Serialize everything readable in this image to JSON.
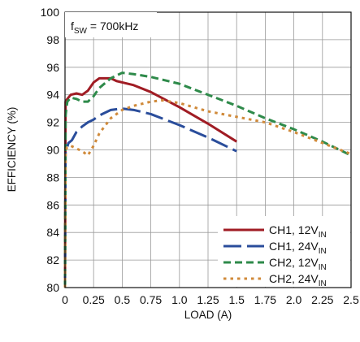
{
  "chart_data": {
    "type": "line",
    "annotation": {
      "main": "f",
      "sub": "SW",
      "rest": " = 700kHz"
    },
    "xlabel": "LOAD (A)",
    "ylabel": "EFFICIENCY (%)",
    "xlim": [
      0,
      2.5
    ],
    "ylim": [
      80,
      100
    ],
    "x_ticks": [
      0,
      0.25,
      0.5,
      0.75,
      1.0,
      1.25,
      1.5,
      1.75,
      2.0,
      2.25,
      2.5
    ],
    "x_tick_labels": [
      "0",
      "0.25",
      "0.5",
      "0.75",
      "1.0",
      "1.25",
      "1.5",
      "1.75",
      "2.0",
      "2.25",
      "2.5"
    ],
    "y_ticks": [
      80,
      82,
      84,
      86,
      88,
      90,
      92,
      94,
      96,
      98,
      100
    ],
    "y_tick_labels": [
      "80",
      "82",
      "84",
      "86",
      "88",
      "90",
      "92",
      "94",
      "96",
      "98",
      "100"
    ],
    "grid": true,
    "legend_position": "bottom-right",
    "series": [
      {
        "name": "CH1, 12V",
        "name_sub": "IN",
        "color": "#a01c24",
        "dash": "solid",
        "points": [
          [
            0.0,
            80.0
          ],
          [
            0.005,
            93.5
          ],
          [
            0.02,
            93.7
          ],
          [
            0.05,
            94.0
          ],
          [
            0.1,
            94.1
          ],
          [
            0.15,
            94.0
          ],
          [
            0.2,
            94.3
          ],
          [
            0.25,
            94.9
          ],
          [
            0.3,
            95.2
          ],
          [
            0.4,
            95.2
          ],
          [
            0.45,
            95.0
          ],
          [
            0.5,
            94.9
          ],
          [
            0.6,
            94.7
          ],
          [
            0.75,
            94.2
          ],
          [
            1.0,
            93.1
          ],
          [
            1.25,
            91.9
          ],
          [
            1.5,
            90.6
          ]
        ]
      },
      {
        "name": "CH1, 24V",
        "name_sub": "IN",
        "color": "#2a4d9b",
        "dash": "long-dash",
        "points": [
          [
            0.0,
            80.0
          ],
          [
            0.005,
            89.8
          ],
          [
            0.03,
            90.5
          ],
          [
            0.06,
            90.7
          ],
          [
            0.1,
            91.3
          ],
          [
            0.15,
            91.7
          ],
          [
            0.2,
            92.0
          ],
          [
            0.25,
            92.2
          ],
          [
            0.3,
            92.5
          ],
          [
            0.4,
            92.9
          ],
          [
            0.5,
            93.0
          ],
          [
            0.6,
            92.9
          ],
          [
            0.75,
            92.6
          ],
          [
            1.0,
            91.8
          ],
          [
            1.25,
            90.9
          ],
          [
            1.5,
            89.9
          ]
        ]
      },
      {
        "name": "CH2, 12V",
        "name_sub": "IN",
        "color": "#2e8a4a",
        "dash": "dash",
        "points": [
          [
            0.0,
            80.0
          ],
          [
            0.005,
            92.5
          ],
          [
            0.02,
            93.5
          ],
          [
            0.05,
            93.8
          ],
          [
            0.1,
            93.7
          ],
          [
            0.15,
            93.5
          ],
          [
            0.2,
            93.5
          ],
          [
            0.25,
            93.9
          ],
          [
            0.3,
            94.5
          ],
          [
            0.4,
            95.2
          ],
          [
            0.5,
            95.6
          ],
          [
            0.6,
            95.5
          ],
          [
            0.75,
            95.3
          ],
          [
            1.0,
            94.8
          ],
          [
            1.25,
            94.0
          ],
          [
            1.5,
            93.2
          ],
          [
            1.75,
            92.3
          ],
          [
            2.0,
            91.5
          ],
          [
            2.25,
            90.6
          ],
          [
            2.5,
            89.6
          ]
        ]
      },
      {
        "name": "CH2, 24V",
        "name_sub": "IN",
        "color": "#d08a3a",
        "dash": "dot",
        "points": [
          [
            0.0,
            80.0
          ],
          [
            0.005,
            90.0
          ],
          [
            0.02,
            90.2
          ],
          [
            0.05,
            90.3
          ],
          [
            0.1,
            90.1
          ],
          [
            0.15,
            89.9
          ],
          [
            0.2,
            89.6
          ],
          [
            0.25,
            90.3
          ],
          [
            0.3,
            91.2
          ],
          [
            0.4,
            92.3
          ],
          [
            0.5,
            92.9
          ],
          [
            0.6,
            93.2
          ],
          [
            0.75,
            93.5
          ],
          [
            0.85,
            93.6
          ],
          [
            1.0,
            93.4
          ],
          [
            1.25,
            92.8
          ],
          [
            1.5,
            92.4
          ],
          [
            1.75,
            92.0
          ],
          [
            2.0,
            91.3
          ],
          [
            2.25,
            90.5
          ],
          [
            2.5,
            89.7
          ]
        ]
      }
    ]
  }
}
